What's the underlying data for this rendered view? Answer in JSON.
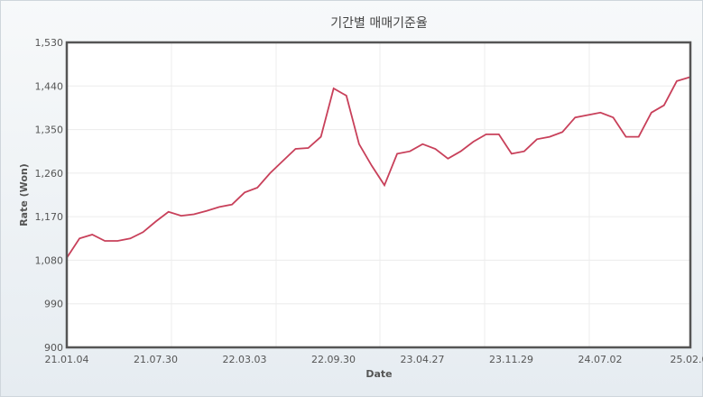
{
  "chart_data": {
    "type": "line",
    "title": "기간별 매매기준율",
    "xlabel": "Date",
    "ylabel": "Rate (Won)",
    "ylim": [
      900,
      1530
    ],
    "yticks": [
      "900",
      "990",
      "1,080",
      "1,170",
      "1,260",
      "1,350",
      "1,440",
      "1,530"
    ],
    "xticks": [
      "21.01.04",
      "21.07.30",
      "22.03.03",
      "22.09.30",
      "23.04.27",
      "23.11.29",
      "24.07.02",
      "25.02.0"
    ],
    "grid": true,
    "line_color": "#c8405a",
    "series": [
      {
        "x": [
          "2021-01",
          "2021-02",
          "2021-03",
          "2021-04",
          "2021-05",
          "2021-06",
          "2021-07",
          "2021-08",
          "2021-09",
          "2021-10",
          "2021-11",
          "2021-12",
          "2022-01",
          "2022-02",
          "2022-03",
          "2022-04",
          "2022-05",
          "2022-06",
          "2022-07",
          "2022-08",
          "2022-09",
          "2022-10",
          "2022-11",
          "2022-12",
          "2023-01",
          "2023-02",
          "2023-03",
          "2023-04",
          "2023-05",
          "2023-06",
          "2023-07",
          "2023-08",
          "2023-09",
          "2023-10",
          "2023-11",
          "2023-12",
          "2024-01",
          "2024-02",
          "2024-03",
          "2024-04",
          "2024-05",
          "2024-06",
          "2024-07",
          "2024-08",
          "2024-09",
          "2024-10",
          "2024-11",
          "2024-12",
          "2025-01",
          "2025-02"
        ],
        "values": [
          1085,
          1125,
          1133,
          1120,
          1120,
          1125,
          1138,
          1160,
          1180,
          1172,
          1175,
          1182,
          1190,
          1195,
          1220,
          1230,
          1260,
          1285,
          1310,
          1312,
          1335,
          1435,
          1420,
          1320,
          1275,
          1235,
          1300,
          1305,
          1320,
          1310,
          1290,
          1305,
          1325,
          1340,
          1340,
          1300,
          1305,
          1330,
          1335,
          1345,
          1375,
          1380,
          1385,
          1375,
          1335,
          1335,
          1385,
          1400,
          1450,
          1458
        ]
      }
    ]
  }
}
